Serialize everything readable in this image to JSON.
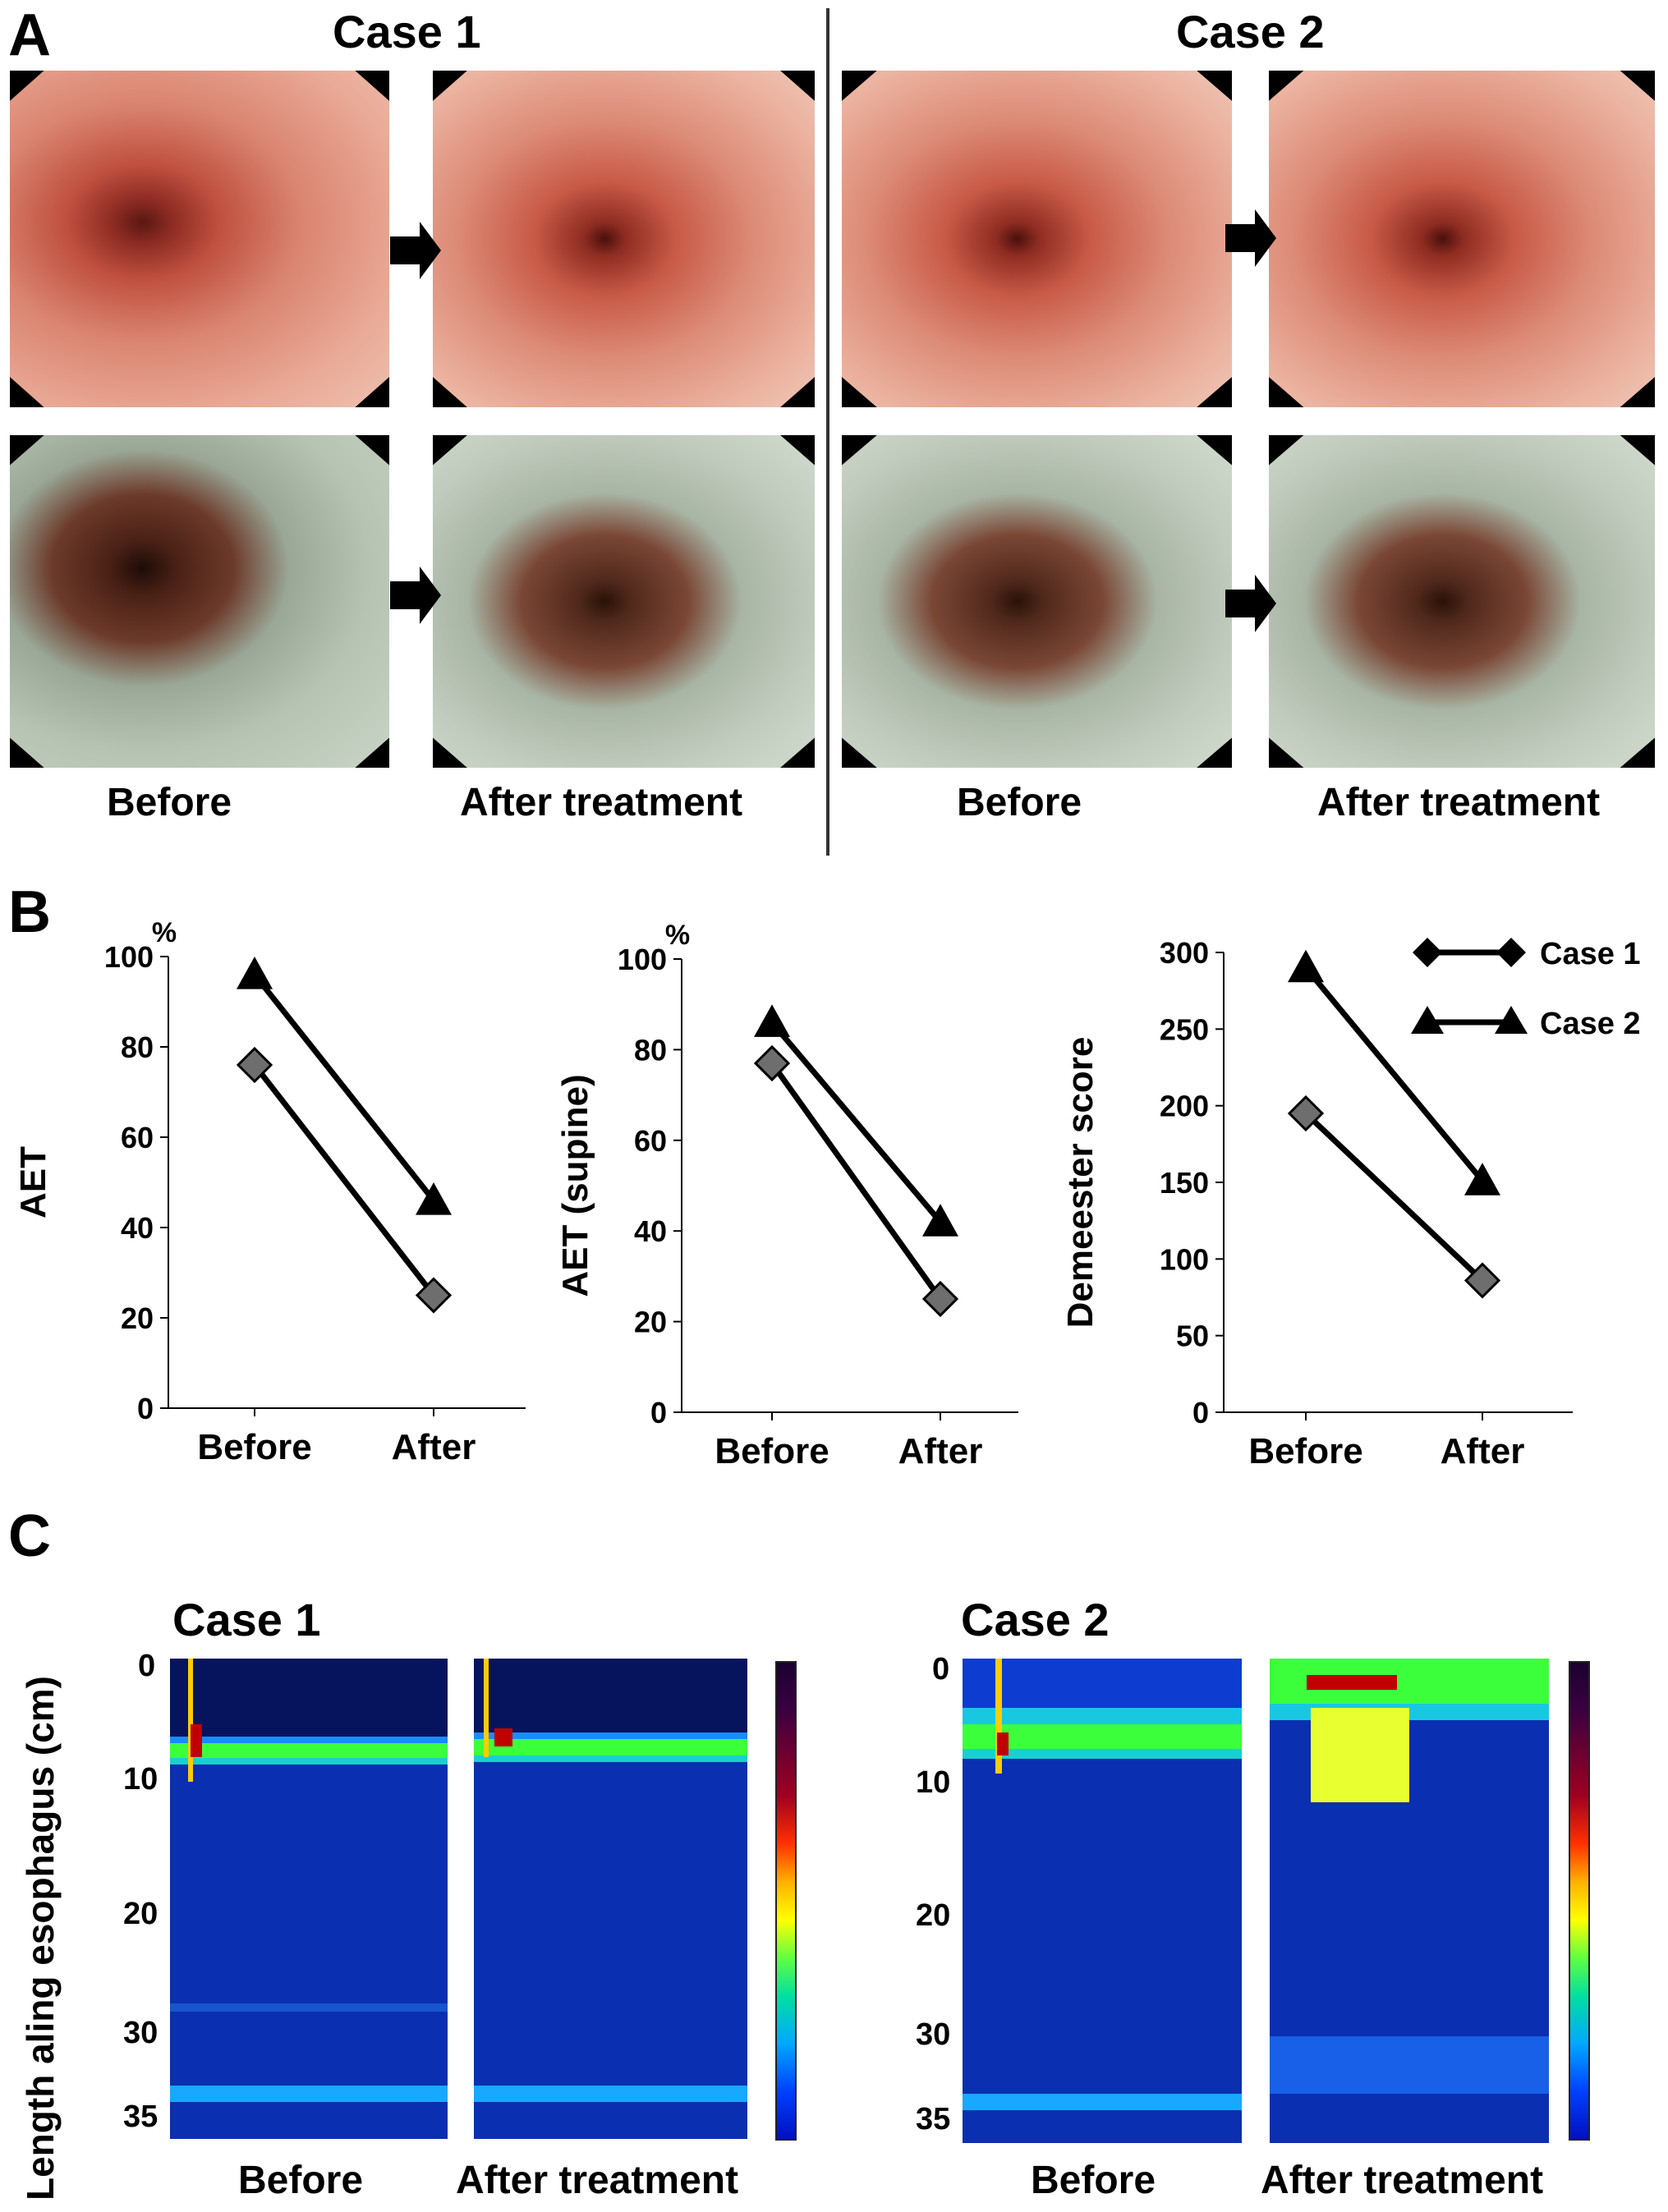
{
  "panel_a": {
    "letter": "A",
    "case1_title": "Case 1",
    "case2_title": "Case 2",
    "captions": [
      "Before",
      "After treatment",
      "Before",
      "After treatment"
    ]
  },
  "panel_b": {
    "letter": "B",
    "legend": [
      "Case 1",
      "Case 2"
    ]
  },
  "panel_c": {
    "letter": "C",
    "ylabel": "Length aling esophagus (cm)",
    "case1_title": "Case 1",
    "case2_title": "Case 2",
    "captions": [
      "Before",
      "After treatment",
      "Before",
      "After treatment"
    ],
    "y_ticks": [
      "0",
      "10",
      "20",
      "30",
      "35"
    ]
  },
  "chart_data": [
    {
      "type": "line",
      "ylabel": "AET",
      "unit": "%",
      "categories": [
        "Before",
        "After"
      ],
      "ylim": [
        0,
        100
      ],
      "yticks": [
        0,
        20,
        40,
        60,
        80,
        100
      ],
      "series": [
        {
          "name": "Case 1",
          "marker": "diamond",
          "values": [
            76,
            25
          ]
        },
        {
          "name": "Case 2",
          "marker": "triangle",
          "values": [
            96,
            46
          ]
        }
      ]
    },
    {
      "type": "line",
      "ylabel": "AET (supine)",
      "unit": "%",
      "categories": [
        "Before",
        "After"
      ],
      "ylim": [
        0,
        100
      ],
      "yticks": [
        0,
        20,
        40,
        60,
        80,
        100
      ],
      "series": [
        {
          "name": "Case 1",
          "marker": "diamond",
          "values": [
            77,
            25
          ]
        },
        {
          "name": "Case 2",
          "marker": "triangle",
          "values": [
            86,
            42
          ]
        }
      ]
    },
    {
      "type": "line",
      "ylabel": "Demeester score",
      "unit": "",
      "categories": [
        "Before",
        "After"
      ],
      "ylim": [
        0,
        300
      ],
      "yticks": [
        0,
        50,
        100,
        150,
        200,
        250,
        300
      ],
      "series": [
        {
          "name": "Case 1",
          "marker": "diamond",
          "values": [
            195,
            86
          ]
        },
        {
          "name": "Case 2",
          "marker": "triangle",
          "values": [
            290,
            151
          ]
        }
      ]
    }
  ],
  "colors": {
    "case1_marker": "#6e6e6e",
    "case2_marker": "#000000",
    "line": "#000000",
    "heatmap_bg": "#0a2fb0"
  }
}
